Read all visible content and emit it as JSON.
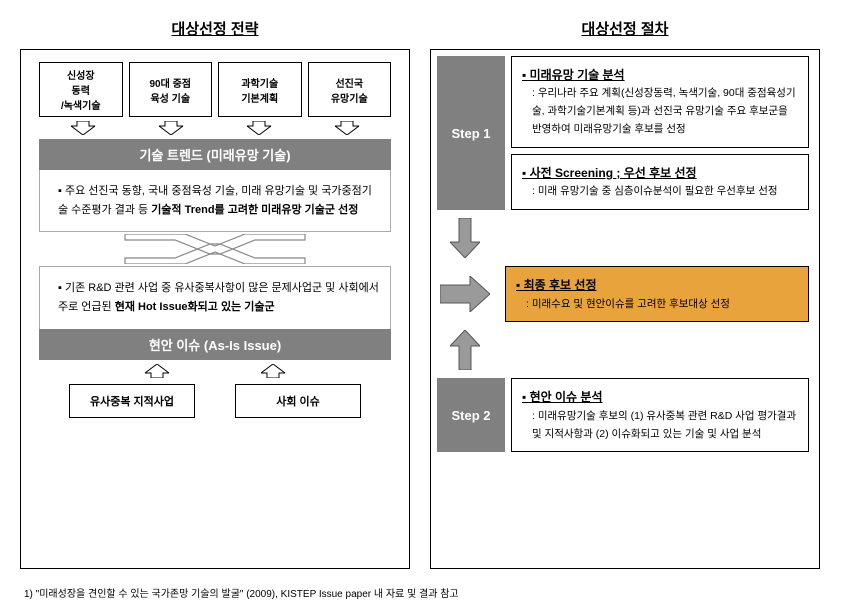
{
  "colors": {
    "band_bg": "#808080",
    "band_text": "#ffffff",
    "highlight_bg": "#e8a33d",
    "border": "#000000",
    "arrow_fill": "#9a9a9a",
    "arrow_stroke": "#555555"
  },
  "left": {
    "title": "대상선정 전략",
    "top_boxes": [
      "신성장\n동력\n/녹색기술",
      "90대 중점\n육성 기술",
      "과학기술\n기본계획",
      "선진국\n유망기술"
    ],
    "band_top": "기술 트렌드 (미래유망 기술)",
    "box_top_text_prefix": "주요 선진국 동향, 국내 중점육성 기술, 미래 유망기술 및 국가중점기술 수준평가 결과 등 ",
    "box_top_text_bold": "기술적 Trend를 고려한 미래유망 기술군 선정",
    "box_bottom_text_prefix": "기존 R&D 관련 사업 중 유사중복사항이 많은 문제사업군 및 사회에서 주로 언급된 ",
    "box_bottom_text_bold": "현재 Hot Issue화되고 있는 기술군",
    "band_bottom": "현안 이슈 (As-Is Issue)",
    "bottom_boxes": [
      "유사중복 지적사업",
      "사회 이슈"
    ]
  },
  "right": {
    "title": "대상선정 절차",
    "step1_label": "Step 1",
    "step1_box1_title": "미래유망 기술 분석",
    "step1_box1_desc": ": 우리나라 주요 계획(신성장동력, 녹색기술, 90대 중점육성기술, 과학기술기본계획 등)과 선진국 유망기술 주요 후보군을 반영하여 미래유망기술 후보를 선정",
    "step1_box2_title": "사전 Screening ; 우선 후보 선정",
    "step1_box2_desc": ": 미래 유망기술 중 심층이슈분석이 필요한 우선후보 선정",
    "middle_box_title": "최종 후보 선정",
    "middle_box_desc": ": 미래수요 및 현안이슈를 고려한 후보대상 선정",
    "step2_label": "Step 2",
    "step2_box_title": "현안 이슈 분석",
    "step2_box_desc": ": 미래유망기술 후보의 (1) 유사중복 관련 R&D 사업 평가결과 및 지적사항과 (2) 이슈화되고 있는 기술 및 사업 분석"
  },
  "footnote": "1) \"미래성장을 견인할 수 있는 국가존망 기술의 발굴\" (2009), KISTEP Issue paper 내 자료 및 결과 참고"
}
